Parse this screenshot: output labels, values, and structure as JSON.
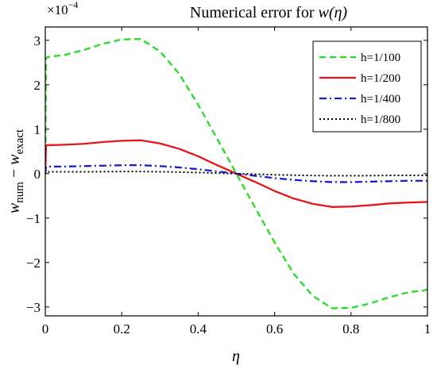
{
  "chart_data": {
    "type": "line",
    "title_prefix": "Numerical error for ",
    "title_math": "w(η)",
    "xlabel": "η",
    "ylabel_main": "w",
    "ylabel_sub1": "num",
    "ylabel_minus": " − ",
    "ylabel_sub2": "exact",
    "y_multiplier_base": "×10",
    "y_multiplier_exp": "−4",
    "xlim": [
      0,
      1
    ],
    "ylim": [
      -3.2,
      3.3
    ],
    "x_ticks": [
      0,
      0.2,
      0.4,
      0.6,
      0.8,
      1
    ],
    "x_tick_labels": [
      "0",
      "0.2",
      "0.4",
      "0.6",
      "0.8",
      "1"
    ],
    "y_ticks": [
      -3,
      -2,
      -1,
      0,
      1,
      2,
      3
    ],
    "y_tick_labels": [
      "−3",
      "−2",
      "−1",
      "0",
      "1",
      "2",
      "3"
    ],
    "grid": false,
    "legend_position": "top-right",
    "x": [
      0,
      0.002,
      0.005,
      0.01,
      0.05,
      0.1,
      0.15,
      0.2,
      0.25,
      0.3,
      0.35,
      0.4,
      0.45,
      0.5,
      0.55,
      0.6,
      0.65,
      0.7,
      0.75,
      0.8,
      0.85,
      0.9,
      0.95,
      0.99,
      0.995,
      1
    ],
    "series": [
      {
        "name": "h=1/100",
        "color": "#22dd22",
        "dash": "dashed",
        "values": [
          0,
          2.6,
          2.62,
          2.63,
          2.67,
          2.78,
          2.92,
          3.02,
          3.03,
          2.75,
          2.25,
          1.55,
          0.78,
          0,
          -0.78,
          -1.55,
          -2.25,
          -2.75,
          -3.03,
          -3.02,
          -2.92,
          -2.78,
          -2.67,
          -2.63,
          -2.62,
          -2.6
        ]
      },
      {
        "name": "h=1/200",
        "color": "#e8141a",
        "dash": "solid",
        "values": [
          0,
          0.63,
          0.64,
          0.64,
          0.65,
          0.67,
          0.71,
          0.74,
          0.75,
          0.68,
          0.56,
          0.39,
          0.19,
          0,
          -0.19,
          -0.39,
          -0.56,
          -0.68,
          -0.75,
          -0.74,
          -0.71,
          -0.67,
          -0.65,
          -0.64,
          -0.64,
          -0.63
        ]
      },
      {
        "name": "h=1/400",
        "color": "#1a1ad6",
        "dash": "dashdot",
        "values": [
          0,
          0.16,
          0.16,
          0.16,
          0.16,
          0.17,
          0.18,
          0.19,
          0.19,
          0.17,
          0.14,
          0.1,
          0.05,
          0,
          -0.05,
          -0.1,
          -0.14,
          -0.17,
          -0.19,
          -0.19,
          -0.18,
          -0.17,
          -0.16,
          -0.16,
          -0.16,
          -0.16
        ]
      },
      {
        "name": "h=1/800",
        "color": "#000000",
        "dash": "dotted",
        "values": [
          0,
          0.04,
          0.04,
          0.04,
          0.04,
          0.04,
          0.045,
          0.047,
          0.047,
          0.042,
          0.035,
          0.025,
          0.012,
          0,
          -0.012,
          -0.025,
          -0.035,
          -0.042,
          -0.047,
          -0.047,
          -0.045,
          -0.04,
          -0.04,
          -0.04,
          -0.04,
          -0.04
        ]
      }
    ]
  }
}
